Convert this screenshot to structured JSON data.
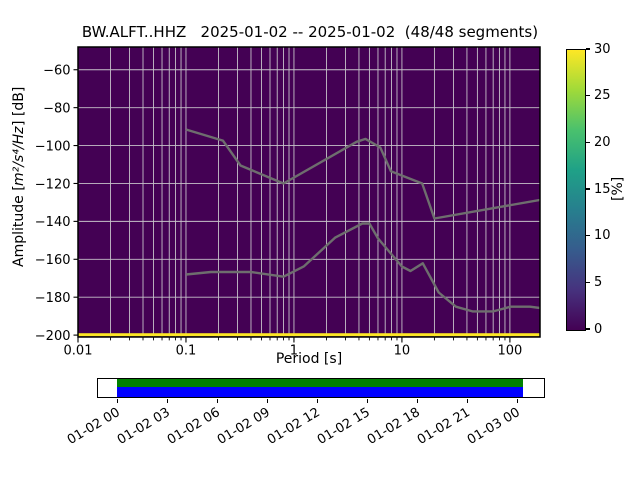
{
  "chart_data": {
    "type": "heatmap",
    "title": "BW.ALFT..HHZ   2025-01-02 -- 2025-01-02  (48/48 segments)",
    "xlabel": "Period [s]",
    "ylabel": "Amplitude [m²/s⁴/Hz] [dB]",
    "ylabel_parts": {
      "prefix": "Amplitude [",
      "math": "m²/s⁴/Hz",
      "suffix": "] [dB]"
    },
    "xscale": "log",
    "xlim": [
      0.01,
      190
    ],
    "ylim": [
      -201,
      -48
    ],
    "xticks": [
      "0.01",
      "0.1",
      "1",
      "10",
      "100"
    ],
    "xtick_values": [
      0.01,
      0.1,
      1,
      10,
      100
    ],
    "ytick_labels": [
      "−60",
      "−80",
      "−100",
      "−120",
      "−140",
      "−160",
      "−180",
      "−200"
    ],
    "ytick_values": [
      -60,
      -80,
      -100,
      -120,
      -140,
      -160,
      -180,
      -200
    ],
    "grid": true,
    "background_color": "#440154",
    "grid_color": "#c6c2c9",
    "histogram_band": {
      "db_top": -199,
      "db_bottom": -200.6,
      "percent": 30,
      "color": "#fde725"
    },
    "noise_models": {
      "color": "#6e6e6e",
      "high": [
        [
          0.1,
          -91.5
        ],
        [
          0.22,
          -97.4
        ],
        [
          0.32,
          -110.5
        ],
        [
          0.8,
          -120.0
        ],
        [
          3.8,
          -98.0
        ],
        [
          4.6,
          -96.5
        ],
        [
          6.3,
          -101.0
        ],
        [
          7.9,
          -113.5
        ],
        [
          15.4,
          -120.0
        ],
        [
          20.0,
          -138.5
        ],
        [
          354.8,
          -126.0
        ]
      ],
      "low": [
        [
          0.1,
          -168.0
        ],
        [
          0.17,
          -166.7
        ],
        [
          0.4,
          -166.7
        ],
        [
          0.8,
          -169.2
        ],
        [
          1.24,
          -163.7
        ],
        [
          2.4,
          -148.6
        ],
        [
          4.3,
          -141.1
        ],
        [
          5.0,
          -141.1
        ],
        [
          6.0,
          -149.0
        ],
        [
          10.0,
          -163.8
        ],
        [
          12.0,
          -166.2
        ],
        [
          15.6,
          -162.1
        ],
        [
          21.9,
          -177.5
        ],
        [
          31.6,
          -185.0
        ],
        [
          45.0,
          -187.5
        ],
        [
          70.0,
          -187.5
        ],
        [
          101.0,
          -185.0
        ],
        [
          154.0,
          -185.0
        ],
        [
          328.0,
          -187.5
        ]
      ]
    },
    "colorbar": {
      "label": "[%]",
      "min": 0,
      "max": 30,
      "ticks": [
        0,
        5,
        10,
        15,
        20,
        25,
        30
      ],
      "colormap": "viridis",
      "gradient_stops": [
        "#440154",
        "#46327e",
        "#365c8d",
        "#277f8e",
        "#1fa187",
        "#4ac16d",
        "#a0da39",
        "#fde725"
      ]
    },
    "timeline": {
      "tick_labels": [
        "01-02 00",
        "01-02 03",
        "01-02 06",
        "01-02 09",
        "01-02 12",
        "01-02 15",
        "01-02 18",
        "01-02 21",
        "01-03 00"
      ],
      "coverage_top_color": "#008000",
      "coverage_bottom_color": "#0000ff"
    }
  }
}
